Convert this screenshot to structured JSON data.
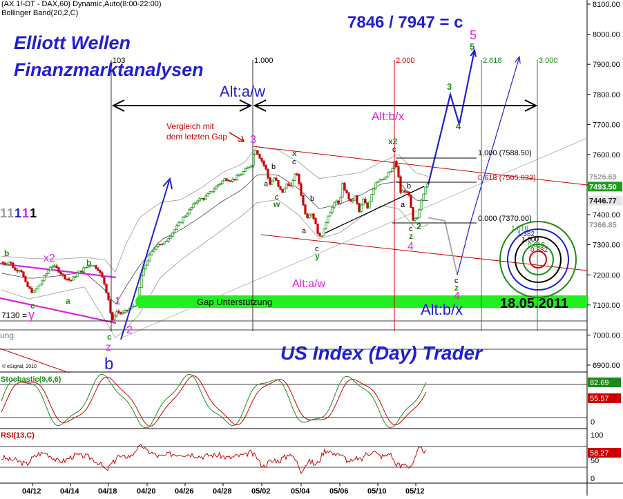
{
  "header": {
    "symbol_line": "(AX 1!-DT - DAX,60) Dynamic,Auto(8:00-22:00)",
    "indicator_line": "Bollinger Band(20,2,C)"
  },
  "title_lines": [
    "Elliott Wellen",
    "Finanzmarktanalysen"
  ],
  "brand": "US Index (Day) Trader",
  "ratio_text": "7846 / 7947 = c",
  "date_text": "18.05.2011",
  "credit": "© eSignal, 2010",
  "left_cut_label": "ung",
  "left_level_label": "7130 =",
  "wave_count_legend": [
    "1",
    "1",
    "1",
    "1",
    "1"
  ],
  "fib_time_labels": [
    "103",
    "1.000",
    "2.000",
    "2.618",
    "3.000"
  ],
  "fib_price_labels": [
    "1.000 (7588.50)",
    "0.618 (7505.033)",
    "0.000 (7370.00)"
  ],
  "circle_labels": [
    "1.618",
    "1.382",
    "1.000",
    "0.618",
    "0.382"
  ],
  "gap_label": "Gap Unterstützung",
  "note": [
    "Vergleich mit",
    "dem letzten Gap"
  ],
  "alt_labels": {
    "aw_top": "Alt:a/w",
    "bx_top": "Alt:b/x",
    "aw_mid": "Alt:a/w",
    "bx_bottom": "Alt:b/x"
  },
  "wave_labels": {
    "five": "5",
    "five_green": "5",
    "three_green": "3",
    "four_green": "4",
    "x2_left": "x2",
    "b_left1": "b",
    "b_left2": "b",
    "c_left": "c",
    "y_left": "y",
    "a_left": "a",
    "one_magenta": "1",
    "two_magenta": "2",
    "c_low": "c",
    "z_low": "z",
    "b_blue_low": "b",
    "three_magenta": "3",
    "x_green": "x",
    "c_top_mid": "c",
    "b_mid1": "b",
    "a_mid1": "a",
    "c_mid1": "c",
    "w_mid1": "w",
    "b_mid2": "b",
    "a_mid2": "a",
    "c_mid2": "c",
    "y_mid": "y",
    "x2_right": "x2",
    "c_right": "c",
    "a_right": "a",
    "b_right": "b",
    "c_right2": "c",
    "z_right": "z",
    "two_right": "2",
    "four_magenta": "4",
    "c_proj": "c",
    "z_proj": "z",
    "four_proj": "4"
  },
  "price_axis": {
    "ticks": [
      "8100.00",
      "8000.00",
      "7900.00",
      "7800.00",
      "7700.00",
      "7600.00",
      "7500.00",
      "7400.00",
      "7300.00",
      "7200.00",
      "7100.00",
      "7000.00",
      "6900.00"
    ],
    "markers": [
      {
        "label": "7526.69",
        "color": "#ffffff",
        "text_color": "#999999"
      },
      {
        "label": "7493.50",
        "color": "#1aa01a",
        "text_color": "#ffffff"
      },
      {
        "label": "7446.77",
        "color": "#e6e6e6",
        "text_color": "#222222"
      },
      {
        "label": "7366.85",
        "color": "#ffffff",
        "text_color": "#999999"
      }
    ]
  },
  "stochastic": {
    "label": "Stochastic(9,6,6)",
    "ticks": [
      "50",
      "0"
    ],
    "values": [
      "82.69",
      "55.57"
    ]
  },
  "rsi": {
    "label": "RSI(13,C)",
    "ticks": [
      "100",
      "50",
      "0"
    ],
    "value": "58.27"
  },
  "colors": {
    "up": "#1a9a1a",
    "down": "#cc0000",
    "blue": "#1f1fd0",
    "magenta": "#e020e0",
    "green": "#1a8a1a",
    "gapbar": "#22ee22"
  },
  "chart_data": {
    "type": "candlestick",
    "instrument": "AX 1!-DT - DAX",
    "interval": "60",
    "x_tick_labels": [
      "04/12",
      "04/14",
      "04/18",
      "04/20",
      "04/26",
      "04/28",
      "05/02",
      "05/04",
      "05/06",
      "05/10",
      "05/12"
    ],
    "ylim": [
      6880,
      8120
    ],
    "yticks": [
      6900,
      7000,
      7100,
      7200,
      7300,
      7400,
      7500,
      7600,
      7700,
      7800,
      7900,
      8000,
      8100
    ],
    "price_path": [
      [
        0,
        7242
      ],
      [
        6,
        7236
      ],
      [
        12,
        7245
      ],
      [
        20,
        7215
      ],
      [
        28,
        7220
      ],
      [
        36,
        7165
      ],
      [
        46,
        7140
      ],
      [
        56,
        7170
      ],
      [
        64,
        7200
      ],
      [
        72,
        7232
      ],
      [
        80,
        7222
      ],
      [
        90,
        7195
      ],
      [
        100,
        7180
      ],
      [
        110,
        7205
      ],
      [
        120,
        7222
      ],
      [
        130,
        7236
      ],
      [
        140,
        7220
      ],
      [
        148,
        7180
      ],
      [
        156,
        7110
      ],
      [
        160,
        7040
      ],
      [
        166,
        7080
      ],
      [
        174,
        7070
      ],
      [
        182,
        7082
      ],
      [
        190,
        7095
      ],
      [
        197,
        7105
      ],
      [
        202,
        7190
      ],
      [
        210,
        7240
      ],
      [
        218,
        7275
      ],
      [
        226,
        7305
      ],
      [
        234,
        7300
      ],
      [
        244,
        7330
      ],
      [
        254,
        7360
      ],
      [
        264,
        7392
      ],
      [
        274,
        7420
      ],
      [
        284,
        7450
      ],
      [
        294,
        7455
      ],
      [
        304,
        7478
      ],
      [
        314,
        7500
      ],
      [
        324,
        7520
      ],
      [
        334,
        7515
      ],
      [
        344,
        7530
      ],
      [
        354,
        7550
      ],
      [
        362,
        7568
      ],
      [
        367,
        7622
      ],
      [
        372,
        7600
      ],
      [
        378,
        7575
      ],
      [
        384,
        7545
      ],
      [
        388,
        7500
      ],
      [
        396,
        7525
      ],
      [
        402,
        7485
      ],
      [
        408,
        7475
      ],
      [
        414,
        7508
      ],
      [
        420,
        7490
      ],
      [
        426,
        7548
      ],
      [
        432,
        7495
      ],
      [
        436,
        7440
      ],
      [
        442,
        7390
      ],
      [
        448,
        7410
      ],
      [
        454,
        7380
      ],
      [
        460,
        7322
      ],
      [
        466,
        7340
      ],
      [
        472,
        7395
      ],
      [
        478,
        7420
      ],
      [
        484,
        7445
      ],
      [
        490,
        7440
      ],
      [
        494,
        7500
      ],
      [
        500,
        7470
      ],
      [
        506,
        7440
      ],
      [
        512,
        7460
      ],
      [
        518,
        7410
      ],
      [
        524,
        7450
      ],
      [
        530,
        7422
      ],
      [
        536,
        7470
      ],
      [
        542,
        7508
      ],
      [
        548,
        7520
      ],
      [
        554,
        7515
      ],
      [
        560,
        7535
      ],
      [
        566,
        7552
      ],
      [
        570,
        7582
      ],
      [
        574,
        7540
      ],
      [
        578,
        7475
      ],
      [
        584,
        7480
      ],
      [
        590,
        7462
      ],
      [
        596,
        7378
      ],
      [
        602,
        7390
      ],
      [
        608,
        7452
      ],
      [
        614,
        7496
      ],
      [
        618,
        7500
      ]
    ],
    "bollinger_upper": [
      [
        0,
        7262
      ],
      [
        40,
        7255
      ],
      [
        80,
        7252
      ],
      [
        120,
        7258
      ],
      [
        150,
        7250
      ],
      [
        165,
        7210
      ],
      [
        180,
        7300
      ],
      [
        200,
        7390
      ],
      [
        230,
        7440
      ],
      [
        260,
        7450
      ],
      [
        290,
        7490
      ],
      [
        320,
        7540
      ],
      [
        350,
        7570
      ],
      [
        370,
        7626
      ],
      [
        400,
        7615
      ],
      [
        430,
        7575
      ],
      [
        460,
        7520
      ],
      [
        490,
        7530
      ],
      [
        520,
        7540
      ],
      [
        550,
        7575
      ],
      [
        575,
        7600
      ],
      [
        600,
        7540
      ],
      [
        618,
        7527
      ]
    ],
    "bollinger_lower": [
      [
        0,
        7150
      ],
      [
        40,
        7120
      ],
      [
        80,
        7140
      ],
      [
        120,
        7160
      ],
      [
        150,
        7050
      ],
      [
        165,
        6990
      ],
      [
        180,
        7020
      ],
      [
        200,
        7070
      ],
      [
        230,
        7190
      ],
      [
        260,
        7250
      ],
      [
        290,
        7300
      ],
      [
        320,
        7350
      ],
      [
        350,
        7400
      ],
      [
        370,
        7440
      ],
      [
        400,
        7450
      ],
      [
        430,
        7400
      ],
      [
        460,
        7320
      ],
      [
        490,
        7340
      ],
      [
        520,
        7390
      ],
      [
        550,
        7430
      ],
      [
        575,
        7420
      ],
      [
        600,
        7355
      ],
      [
        618,
        7367
      ]
    ],
    "last_values": {
      "close": 7493.5,
      "bb_upper": 7526.69,
      "bb_mid": 7446.77,
      "bb_lower": 7366.85
    },
    "projection": [
      [
        618,
        7500
      ],
      [
        650,
        7800
      ],
      [
        663,
        7700
      ],
      [
        685,
        7947
      ]
    ],
    "alt_projection": [
      [
        618,
        7390
      ],
      [
        642,
        7380
      ],
      [
        660,
        7200
      ],
      [
        680,
        7380
      ],
      [
        750,
        7925
      ]
    ],
    "fib_levels": [
      {
        "label": "1.000",
        "value": 7588.5
      },
      {
        "label": "0.618",
        "value": 7505.033
      },
      {
        "label": "0.000",
        "value": 7370.0
      }
    ],
    "gap_support": [
      7085,
      7110
    ],
    "indicators": {
      "stochastic": {
        "name": "Stochastic(9,6,6)",
        "k_last": 82.69,
        "d_last": 55.57,
        "ylim": [
          0,
          100
        ]
      },
      "rsi": {
        "name": "RSI(13,C)",
        "last": 58.27,
        "ylim": [
          0,
          100
        ]
      }
    }
  }
}
